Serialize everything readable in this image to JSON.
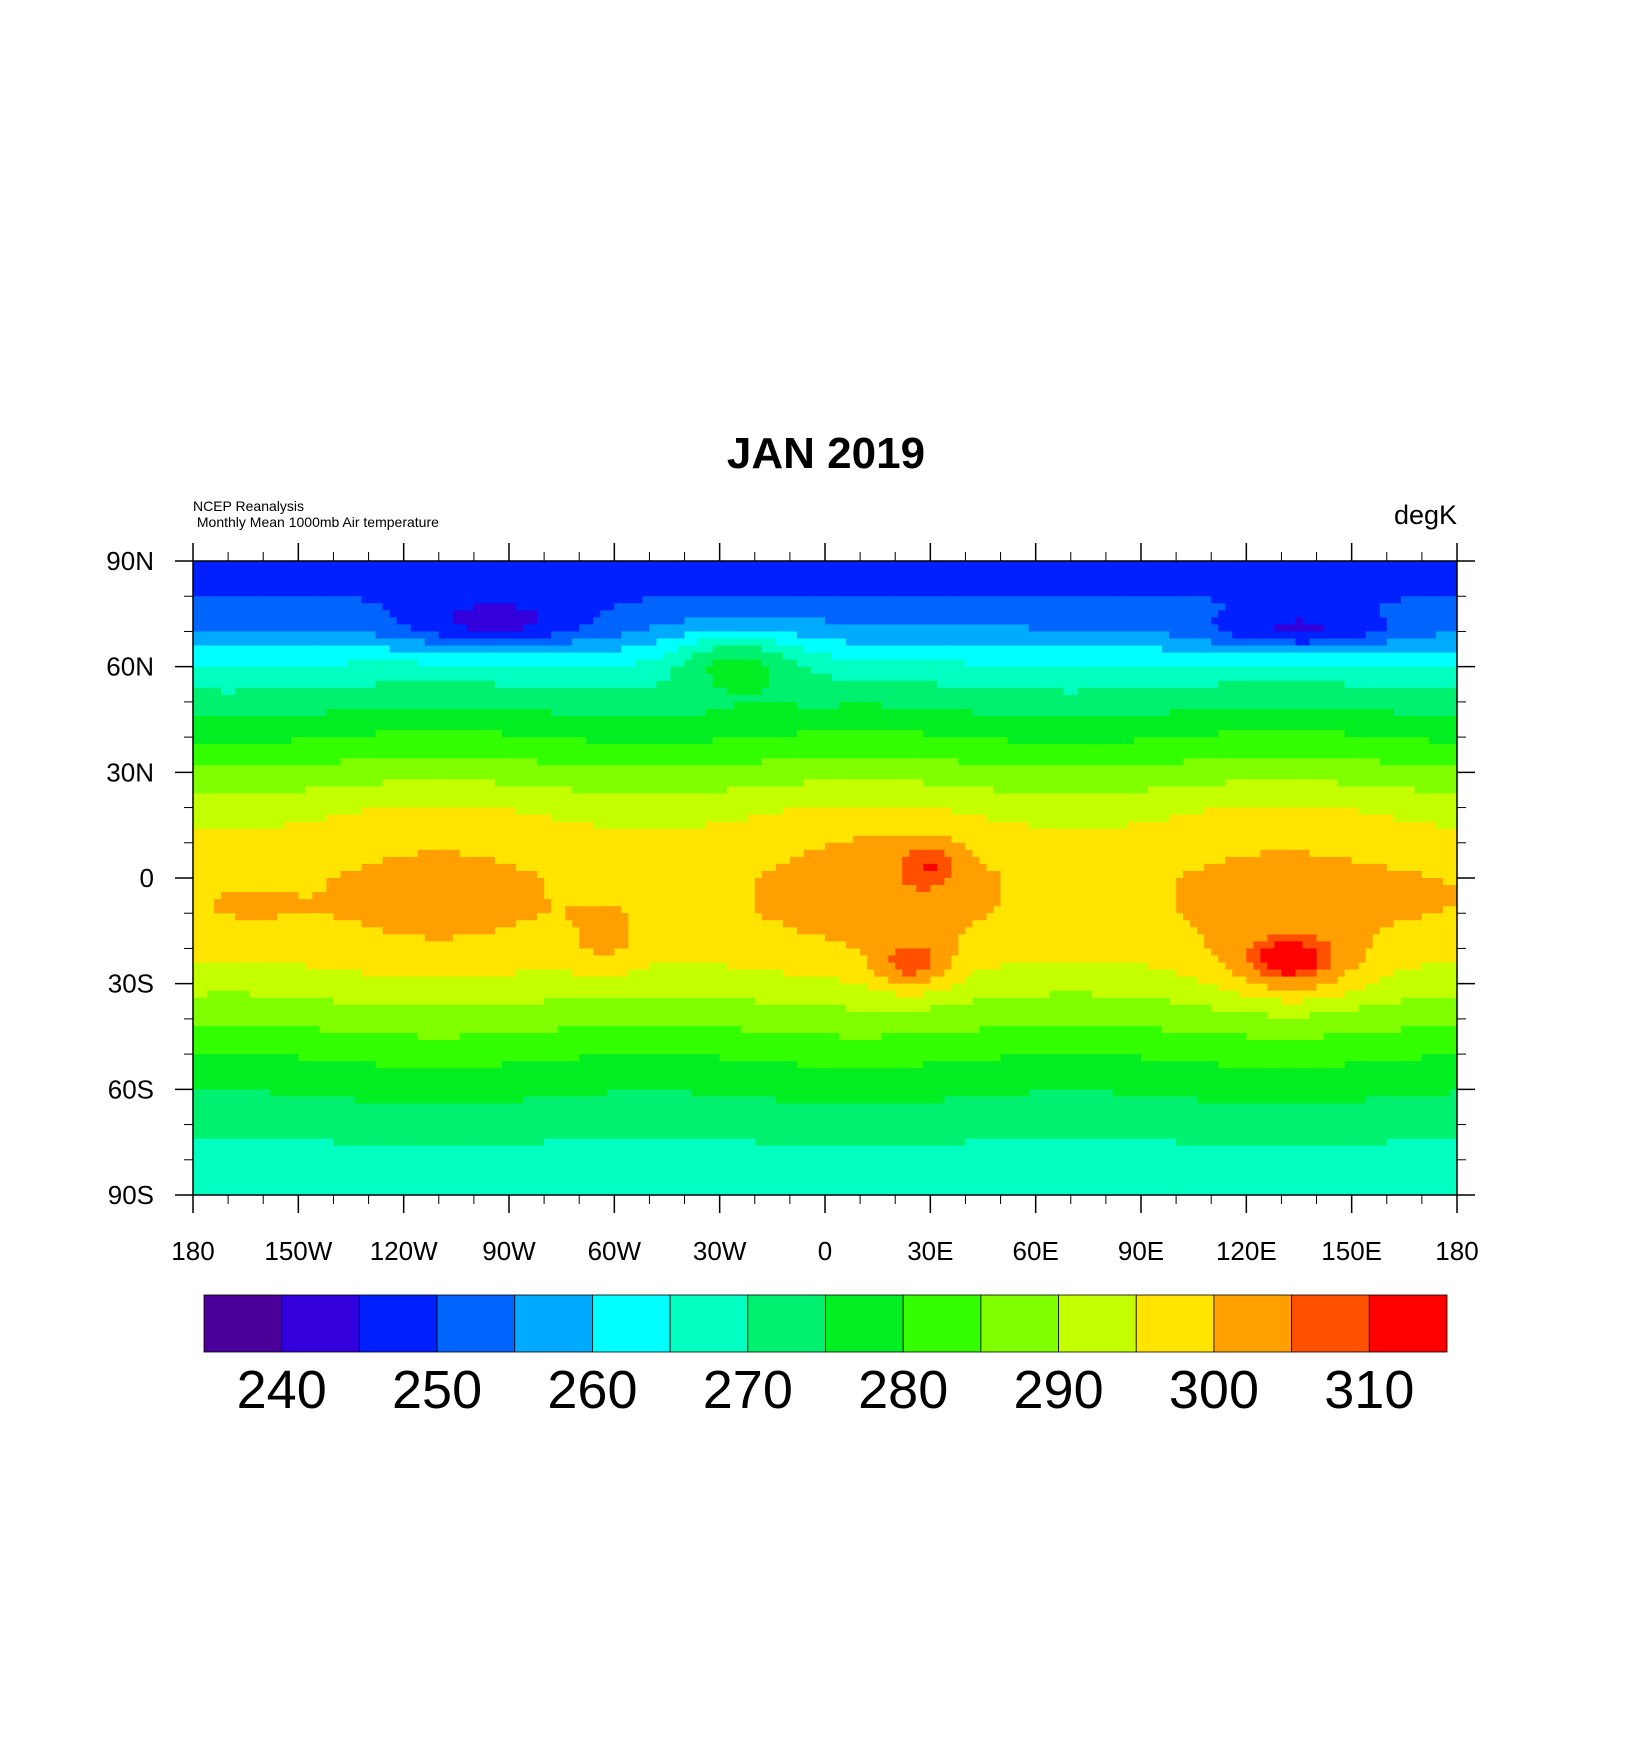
{
  "chart_data": {
    "type": "heatmap",
    "title": "JAN 2019",
    "subtitle_lines": [
      "NCEP Reanalysis",
      " Monthly Mean 1000mb Air temperature"
    ],
    "units": "degK",
    "x_ticks": [
      "180",
      "150W",
      "120W",
      "90W",
      "60W",
      "30W",
      "0",
      "30E",
      "60E",
      "90E",
      "120E",
      "150E",
      "180"
    ],
    "y_ticks": [
      "90N",
      "60N",
      "30N",
      "0",
      "30S",
      "60S",
      "90S"
    ],
    "xlim": [
      -180,
      180
    ],
    "ylim": [
      -90,
      90
    ],
    "levels": [
      240,
      245,
      250,
      255,
      260,
      265,
      270,
      275,
      280,
      285,
      290,
      295,
      300,
      305,
      310
    ],
    "colorbar_labels": [
      "240",
      "250",
      "260",
      "270",
      "280",
      "290",
      "300",
      "310"
    ],
    "colors": [
      "#4a0098",
      "#3300dd",
      "#0020ff",
      "#0064ff",
      "#00aaff",
      "#00ffff",
      "#00ffc0",
      "#00f070",
      "#00ee22",
      "#33ff00",
      "#80ff00",
      "#c4ff00",
      "#ffe400",
      "#ffa000",
      "#ff5000",
      "#ff0000"
    ],
    "zonal_mean": [
      [
        90,
        246
      ],
      [
        80,
        250
      ],
      [
        70,
        256
      ],
      [
        60,
        266
      ],
      [
        50,
        273
      ],
      [
        40,
        280
      ],
      [
        30,
        287
      ],
      [
        20,
        294
      ],
      [
        10,
        298
      ],
      [
        0,
        300
      ],
      [
        -10,
        300
      ],
      [
        -20,
        298
      ],
      [
        -30,
        293
      ],
      [
        -40,
        287
      ],
      [
        -50,
        281
      ],
      [
        -60,
        276
      ],
      [
        -70,
        272
      ],
      [
        -80,
        268
      ],
      [
        -90,
        266
      ]
    ],
    "hot_spots": [
      {
        "name": "central-africa",
        "lon": 25,
        "lat": 0,
        "dlon": 25,
        "dlat": 15,
        "value": 303
      },
      {
        "name": "central-africa-core",
        "lon": 30,
        "lat": 4,
        "dlon": 7,
        "dlat": 6,
        "value": 307
      },
      {
        "name": "southern-africa",
        "lon": 25,
        "lat": -25,
        "dlon": 12,
        "dlat": 8,
        "value": 306
      },
      {
        "name": "australia",
        "lon": 133,
        "lat": -25,
        "dlon": 20,
        "dlat": 11,
        "value": 306
      },
      {
        "name": "australia-core",
        "lon": 132,
        "lat": -23,
        "dlon": 8,
        "dlat": 4,
        "value": 311
      },
      {
        "name": "south-america",
        "lon": -62,
        "lat": -20,
        "dlon": 12,
        "dlat": 12,
        "value": 302
      },
      {
        "name": "central-pacific",
        "lon": -165,
        "lat": -8,
        "dlon": 18,
        "dlat": 9,
        "value": 302
      },
      {
        "name": "west-pacific",
        "lon": 165,
        "lat": -5,
        "dlon": 25,
        "dlat": 8,
        "value": 302
      },
      {
        "name": "canada-arctic",
        "lon": -95,
        "lat": 72,
        "dlon": 30,
        "dlat": 8,
        "value": 243
      },
      {
        "name": "siberia",
        "lon": 135,
        "lat": 70,
        "dlon": 30,
        "dlat": 7,
        "value": 244
      },
      {
        "name": "north-atlantic",
        "lon": -25,
        "lat": 62,
        "dlon": 20,
        "dlat": 10,
        "value": 276
      },
      {
        "name": "europe",
        "lon": 15,
        "lat": 52,
        "dlon": 20,
        "dlat": 8,
        "value": 272
      }
    ]
  }
}
